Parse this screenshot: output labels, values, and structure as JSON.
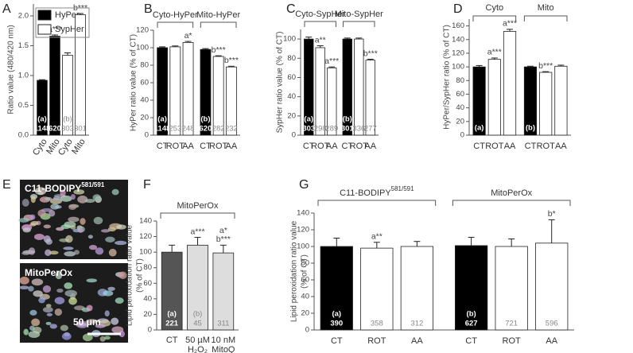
{
  "chart_data": [
    {
      "type": "bar",
      "panel": "A",
      "ylabel": "Ratio value (480/420 nm)",
      "ylim": [
        0,
        2.2
      ],
      "yticks": [
        {
          "value": 0,
          "label": "0.0"
        },
        {
          "value": 0.5,
          "label": "0.5"
        },
        {
          "value": 1,
          "label": "1.0"
        },
        {
          "value": 1.5,
          "label": "1.5"
        },
        {
          "value": 2,
          "label": "2.0"
        }
      ],
      "series_labels": "legend",
      "rotated_categories": true,
      "series": [
        {
          "name": "HyPer",
          "color": "#000000",
          "categories": [
            "Cyto",
            "Mito"
          ],
          "values": [
            0.92,
            1.66
          ],
          "errors": [
            0.01,
            0.02
          ],
          "n": [
            1148,
            620
          ],
          "n_tags": [
            "(a)",
            null
          ],
          "annotations": [
            null,
            "a***"
          ]
        },
        {
          "name": "SypHer",
          "color": "#ffffff",
          "categories": [
            "Cyto",
            "Mito"
          ],
          "values": [
            1.34,
            2.02
          ],
          "errors": [
            0.04,
            0.02
          ],
          "n": [
            303,
            301
          ],
          "n_tags": [
            "(b)",
            null
          ],
          "annotations": [
            null,
            "b***"
          ]
        }
      ]
    },
    {
      "type": "bar",
      "panel": "B",
      "ylabel": "HyPer ratio value (% of CT)",
      "ylim": [
        0,
        120
      ],
      "yticks": [
        0,
        20,
        40,
        60,
        80,
        100,
        120
      ],
      "series_labels": "bracket",
      "series": [
        {
          "name": "Cyto-HyPer",
          "colors": [
            "#000000",
            "#ffffff",
            "#ffffff"
          ],
          "categories": [
            "CT",
            "ROT",
            "AA"
          ],
          "values": [
            100,
            101,
            106
          ],
          "errors": [
            1,
            1,
            1.2
          ],
          "n": [
            1148,
            253,
            248
          ],
          "n_tags": [
            "(a)",
            null,
            null
          ],
          "annotations": [
            null,
            null,
            "a*"
          ]
        },
        {
          "name": "Mito-HyPer",
          "colors": [
            "#000000",
            "#ffffff",
            "#ffffff"
          ],
          "categories": [
            "CT",
            "ROT",
            "AA"
          ],
          "values": [
            98,
            90,
            78
          ],
          "errors": [
            1,
            0.8,
            0.8
          ],
          "n": [
            620,
            282,
            232
          ],
          "n_tags": [
            "(b)",
            null,
            null
          ],
          "annotations": [
            null,
            "b***",
            "b***"
          ]
        }
      ]
    },
    {
      "type": "bar",
      "panel": "C",
      "ylabel": "SypHer ratio value (% of CT)",
      "ylim": [
        0,
        110
      ],
      "yticks": [
        0,
        20,
        40,
        60,
        80,
        100
      ],
      "series_labels": "bracket",
      "series": [
        {
          "name": "Cyto-SypHer",
          "colors": [
            "#000000",
            "#ffffff",
            "#ffffff"
          ],
          "categories": [
            "CT",
            "ROT",
            "AA"
          ],
          "values": [
            100,
            91,
            70
          ],
          "errors": [
            2,
            2,
            1
          ],
          "n": [
            303,
            298,
            289
          ],
          "n_tags": [
            "(a)",
            null,
            null
          ],
          "annotations": [
            null,
            "a**",
            "a***"
          ]
        },
        {
          "name": "Mito-SypHer",
          "colors": [
            "#000000",
            "#ffffff",
            "#ffffff"
          ],
          "categories": [
            "CT",
            "ROT",
            "AA"
          ],
          "values": [
            100,
            100,
            78
          ],
          "errors": [
            1,
            1,
            1
          ],
          "n": [
            301,
            336,
            277
          ],
          "n_tags": [
            "(b)",
            null,
            null
          ],
          "annotations": [
            null,
            null,
            "b***"
          ]
        }
      ]
    },
    {
      "type": "bar",
      "panel": "D",
      "ylabel": "HyPer/SypHer ratio (% of CT)",
      "ylim": [
        0,
        170
      ],
      "yticks": [
        0,
        20,
        40,
        60,
        80,
        100,
        120,
        140,
        160
      ],
      "series_labels": "bracket",
      "series": [
        {
          "name": "Cyto",
          "colors": [
            "#000000",
            "#ffffff",
            "#ffffff"
          ],
          "categories": [
            "CT",
            "ROT",
            "AA"
          ],
          "values": [
            100,
            111,
            152
          ],
          "errors": [
            2,
            2,
            3
          ],
          "n_tags": [
            "(a)",
            null,
            null
          ],
          "annotations": [
            null,
            "a***",
            "a***"
          ]
        },
        {
          "name": "Mito",
          "colors": [
            "#000000",
            "#ffffff",
            "#ffffff"
          ],
          "categories": [
            "CT",
            "ROT",
            "AA"
          ],
          "values": [
            100,
            92,
            101
          ],
          "errors": [
            1,
            1,
            1.5
          ],
          "n_tags": [
            "(b)",
            null,
            null
          ],
          "annotations": [
            null,
            "b***",
            null
          ]
        }
      ]
    },
    {
      "type": "bar",
      "panel": "F",
      "ylabel": [
        "Lipid peroxidation ratio value",
        "(% of CT)"
      ],
      "ylim": [
        0,
        140
      ],
      "yticks": [
        0,
        20,
        40,
        60,
        80,
        100,
        120,
        140
      ],
      "series_labels": "bracket",
      "series": [
        {
          "name": "MitoPerOx",
          "colors": [
            "#555555",
            "#dddddd",
            "#dddddd"
          ],
          "categories": [
            [
              "CT"
            ],
            [
              "50 µM",
              "H₂O₂"
            ],
            [
              "10 nM",
              "MitoQ"
            ]
          ],
          "values": [
            100,
            109,
            99
          ],
          "errors": [
            9,
            10,
            10
          ],
          "n": [
            221,
            45,
            311
          ],
          "n_tags": [
            "(a)",
            "(b)",
            null
          ],
          "annotations": [
            null,
            [
              "a***"
            ],
            [
              "a*",
              "b***"
            ]
          ]
        }
      ]
    },
    {
      "type": "bar",
      "panel": "G",
      "ylabel": [
        "Lipid peroxidation ratio value",
        "(% of CT)"
      ],
      "ylim": [
        0,
        140
      ],
      "yticks": [
        0,
        20,
        40,
        60,
        80,
        100,
        120,
        140
      ],
      "series_labels": "bracket",
      "series": [
        {
          "name": {
            "text": "C11-BODIPY",
            "sup": "581/591"
          },
          "colors": [
            "#000000",
            "#ffffff",
            "#ffffff"
          ],
          "categories": [
            "CT",
            "ROT",
            "AA"
          ],
          "values": [
            100,
            98,
            100
          ],
          "errors": [
            10,
            7,
            6
          ],
          "n": [
            390,
            358,
            312
          ],
          "n_tags": [
            "(a)",
            null,
            null
          ],
          "annotations": [
            null,
            "a**",
            null
          ]
        },
        {
          "name": "MitoPerOx",
          "colors": [
            "#000000",
            "#ffffff",
            "#ffffff"
          ],
          "categories": [
            "CT",
            "ROT",
            "AA"
          ],
          "values": [
            101,
            100,
            104
          ],
          "errors": [
            10,
            9,
            28
          ],
          "n": [
            627,
            721,
            596
          ],
          "n_tags": [
            "(b)",
            null,
            null
          ],
          "annotations": [
            null,
            null,
            "b*"
          ]
        }
      ]
    }
  ],
  "image_panel": {
    "panel": "E",
    "images": [
      {
        "label": "C11-BODIPY",
        "sup": "581/591"
      },
      {
        "label": "MitoPerOx"
      }
    ],
    "scale_bar": "50 μm"
  }
}
